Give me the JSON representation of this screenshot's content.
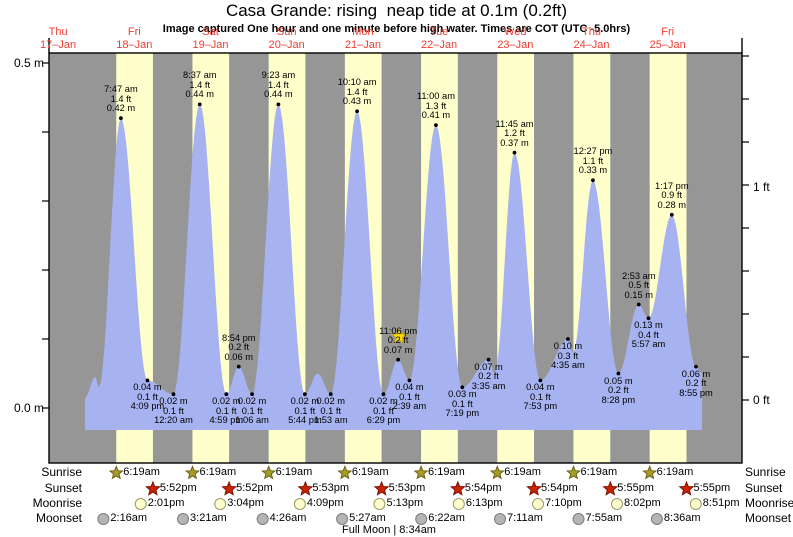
{
  "title": "Casa Grande: rising  neap tide at 0.1m (0.2ft)",
  "subtitle": "Image captured One hour and one minute before high water. Times are COT (UTC -5.0hrs)",
  "axes": {
    "left_top": "0.5 m",
    "left_bottom": "0.0 m",
    "right_top": "1 ft",
    "right_bottom": "0 ft"
  },
  "days": [
    {
      "name": "Thu",
      "date": "17–Jan"
    },
    {
      "name": "Fri",
      "date": "18–Jan"
    },
    {
      "name": "Sat",
      "date": "19–Jan"
    },
    {
      "name": "Sun",
      "date": "20–Jan"
    },
    {
      "name": "Mon",
      "date": "21–Jan"
    },
    {
      "name": "Tue",
      "date": "22–Jan"
    },
    {
      "name": "Wed",
      "date": "23–Jan"
    },
    {
      "name": "Thu",
      "date": "24–Jan"
    },
    {
      "name": "Fri",
      "date": "25–Jan"
    }
  ],
  "chart_data": {
    "type": "area",
    "title": "Casa Grande: rising neap tide at 0.1m (0.2ft)",
    "y_axis_left": {
      "unit": "m",
      "labels_shown": [
        "0.5 m",
        "0.0 m"
      ],
      "range": [
        0.0,
        0.5
      ]
    },
    "y_axis_right": {
      "unit": "ft",
      "labels_shown": [
        "1 ft",
        "0 ft"
      ]
    },
    "x_axis": {
      "days": 9,
      "start": "Thu 17-Jan",
      "end": "Fri 25-Jan"
    },
    "legend": {
      "day_band": "daylight",
      "gray_band": "night",
      "blue_area": "tide height"
    },
    "points": [
      {
        "day": 0,
        "time": "8:30 pm",
        "height_m": 0.015,
        "kind": "shape"
      },
      {
        "day": 0,
        "time": "11:40 pm",
        "height_m": 0.045,
        "kind": "shape"
      },
      {
        "day": 1,
        "time": "12:50 am",
        "height_m": 0.03,
        "kind": "shape"
      },
      {
        "day": 1,
        "time": "7:47 am",
        "height_m": 0.42,
        "height_ft": 1.4,
        "kind": "high",
        "label_lines": [
          "7:47 am",
          "1.4 ft",
          "0.42 m"
        ],
        "label_pos": "above"
      },
      {
        "day": 1,
        "time": "4:09 pm",
        "height_m": 0.04,
        "height_ft": 0.1,
        "kind": "low",
        "label_lines": [
          "0.04 m",
          "0.1 ft",
          "4:09 pm"
        ],
        "label_pos": "below"
      },
      {
        "day": 2,
        "time": "12:20 am",
        "height_m": 0.02,
        "height_ft": 0.1,
        "kind": "low",
        "label_lines": [
          "0.02 m",
          "0.1 ft",
          "12:20 am"
        ],
        "label_pos": "below"
      },
      {
        "day": 2,
        "time": "8:37 am",
        "height_m": 0.44,
        "height_ft": 1.4,
        "kind": "high",
        "label_lines": [
          "8:37 am",
          "1.4 ft",
          "0.44 m"
        ],
        "label_pos": "above"
      },
      {
        "day": 2,
        "time": "4:59 pm",
        "height_m": 0.02,
        "height_ft": 0.1,
        "kind": "low",
        "label_lines": [
          "0.02 m",
          "0.1 ft",
          "4:59 pm"
        ],
        "label_pos": "below"
      },
      {
        "day": 2,
        "time": "8:54 pm",
        "height_m": 0.06,
        "height_ft": 0.2,
        "kind": "high",
        "label_lines": [
          "8:54 pm",
          "0.2 ft",
          "0.06 m"
        ],
        "label_pos": "above"
      },
      {
        "day": 3,
        "time": "1:06 am",
        "height_m": 0.02,
        "height_ft": 0.1,
        "kind": "low",
        "label_lines": [
          "0.02 m",
          "0.1 ft",
          "1:06 am"
        ],
        "label_pos": "below"
      },
      {
        "day": 3,
        "time": "9:23 am",
        "height_m": 0.44,
        "height_ft": 1.4,
        "kind": "high",
        "label_lines": [
          "9:23 am",
          "1.4 ft",
          "0.44 m"
        ],
        "label_pos": "above"
      },
      {
        "day": 3,
        "time": "5:44 pm",
        "height_m": 0.02,
        "height_ft": 0.1,
        "kind": "low",
        "label_lines": [
          "0.02 m",
          "0.1 ft",
          "5:44 pm"
        ],
        "label_pos": "below"
      },
      {
        "day": 3,
        "time": "9:45 pm",
        "height_m": 0.05,
        "kind": "shape"
      },
      {
        "day": 4,
        "time": "1:53 am",
        "height_m": 0.02,
        "height_ft": 0.1,
        "kind": "low",
        "label_lines": [
          "0.02 m",
          "0.1 ft",
          "1:53 am"
        ],
        "label_pos": "below"
      },
      {
        "day": 4,
        "time": "10:10 am",
        "height_m": 0.43,
        "height_ft": 1.4,
        "kind": "high",
        "label_lines": [
          "10:10 am",
          "1.4 ft",
          "0.43 m"
        ],
        "label_pos": "above"
      },
      {
        "day": 4,
        "time": "6:29 pm",
        "height_m": 0.02,
        "height_ft": 0.1,
        "kind": "low",
        "label_lines": [
          "0.02 m",
          "0.1 ft",
          "6:29 pm"
        ],
        "label_pos": "below"
      },
      {
        "day": 4,
        "time": "11:06 pm",
        "height_m": 0.07,
        "height_ft": 0.2,
        "kind": "high",
        "current": true,
        "label_lines": [
          "11:06 pm",
          "0.2 ft",
          "0.07 m"
        ],
        "label_pos": "above"
      },
      {
        "day": 5,
        "time": "2:39 am",
        "height_m": 0.04,
        "height_ft": 0.1,
        "kind": "low",
        "label_lines": [
          "0.04 m",
          "0.1 ft",
          "2:39 am"
        ],
        "label_pos": "below"
      },
      {
        "day": 5,
        "time": "11:00 am",
        "height_m": 0.41,
        "height_ft": 1.3,
        "kind": "high",
        "label_lines": [
          "11:00 am",
          "1.3 ft",
          "0.41 m"
        ],
        "label_pos": "above"
      },
      {
        "day": 5,
        "time": "7:19 pm",
        "height_m": 0.03,
        "height_ft": 0.1,
        "kind": "low",
        "label_lines": [
          "0.03 m",
          "0.1 ft",
          "7:19 pm"
        ],
        "label_pos": "below"
      },
      {
        "day": 6,
        "time": "3:35 am",
        "height_m": 0.07,
        "height_ft": 0.2,
        "kind": "high",
        "label_lines": [
          "0.07 m",
          "0.2 ft",
          "3:35 am"
        ],
        "label_pos": "below"
      },
      {
        "day": 6,
        "time": "5:30 am",
        "height_m": 0.05,
        "kind": "shape"
      },
      {
        "day": 6,
        "time": "11:45 am",
        "height_m": 0.37,
        "height_ft": 1.2,
        "kind": "high",
        "label_lines": [
          "11:45 am",
          "1.2 ft",
          "0.37 m"
        ],
        "label_pos": "above"
      },
      {
        "day": 6,
        "time": "7:53 pm",
        "height_m": 0.04,
        "height_ft": 0.1,
        "kind": "low",
        "label_lines": [
          "0.04 m",
          "0.1 ft",
          "7:53 pm"
        ],
        "label_pos": "below"
      },
      {
        "day": 7,
        "time": "4:35 am",
        "height_m": 0.1,
        "height_ft": 0.3,
        "kind": "high",
        "label_lines": [
          "0.10 m",
          "0.3 ft",
          "4:35 am"
        ],
        "label_pos": "below"
      },
      {
        "day": 7,
        "time": "6:10 am",
        "height_m": 0.08,
        "kind": "shape"
      },
      {
        "day": 7,
        "time": "12:27 pm",
        "height_m": 0.33,
        "height_ft": 1.1,
        "kind": "high",
        "label_lines": [
          "12:27 pm",
          "1.1 ft",
          "0.33 m"
        ],
        "label_pos": "above"
      },
      {
        "day": 7,
        "time": "8:28 pm",
        "height_m": 0.05,
        "height_ft": 0.2,
        "kind": "low",
        "label_lines": [
          "0.05 m",
          "0.2 ft",
          "8:28 pm"
        ],
        "label_pos": "below"
      },
      {
        "day": 8,
        "time": "2:53 am",
        "height_m": 0.15,
        "height_ft": 0.5,
        "kind": "high",
        "label_lines": [
          "2:53 am",
          "0.5 ft",
          "0.15 m"
        ],
        "label_pos": "above"
      },
      {
        "day": 8,
        "time": "5:57 am",
        "height_m": 0.13,
        "height_ft": 0.4,
        "kind": "low",
        "label_lines": [
          "0.13 m",
          "0.4 ft",
          "5:57 am"
        ],
        "label_pos": "below"
      },
      {
        "day": 8,
        "time": "1:17 pm",
        "height_m": 0.28,
        "height_ft": 0.9,
        "kind": "high",
        "label_lines": [
          "1:17 pm",
          "0.9 ft",
          "0.28 m"
        ],
        "label_pos": "above"
      },
      {
        "day": 8,
        "time": "8:55 pm",
        "height_m": 0.06,
        "height_ft": 0.2,
        "kind": "low",
        "label_lines": [
          "0.06 m",
          "0.2 ft",
          "8:55 pm"
        ],
        "label_pos": "below"
      },
      {
        "day": 8,
        "time": "10:50 pm",
        "height_m": 0.05,
        "kind": "shape"
      }
    ]
  },
  "almanac": {
    "rows": [
      {
        "label": "Sunrise",
        "icon": "sunrise-star",
        "times": [
          "6:19am",
          "6:19am",
          "6:19am",
          "6:19am",
          "6:19am",
          "6:19am",
          "6:19am",
          "6:19am"
        ]
      },
      {
        "label": "Sunset",
        "icon": "sunset-star",
        "times": [
          "5:52pm",
          "5:52pm",
          "5:53pm",
          "5:53pm",
          "5:54pm",
          "5:54pm",
          "5:55pm",
          "5:55pm"
        ]
      },
      {
        "label": "Moonrise",
        "icon": "moonrise-circle",
        "times": [
          "2:01pm",
          "3:04pm",
          "4:09pm",
          "5:13pm",
          "6:13pm",
          "7:10pm",
          "8:02pm",
          "8:51pm"
        ]
      },
      {
        "label": "Moonset",
        "icon": "moonset-circle",
        "times": [
          "2:16am",
          "3:21am",
          "4:26am",
          "5:27am",
          "6:22am",
          "7:11am",
          "7:55am",
          "8:36am"
        ]
      }
    ],
    "footnote": "Full Moon | 8:34am"
  },
  "colors": {
    "night_band": "#969696",
    "day_band": "#ffffcc",
    "tide_fill": "#a6b3f0",
    "day_label": "#f03c32",
    "sunrise_star": "#a89b2a",
    "sunrise_star_edge": "#6b6214",
    "sunset_star": "#cc2200",
    "sunset_star_edge": "#7a1200",
    "moonrise_fill": "#ffffcc",
    "moonrise_edge": "#99996b",
    "moonset_fill": "#b5b5b5",
    "moonset_edge": "#7d7d7d",
    "current_marker": "#ffdf00",
    "current_marker_edge": "#c8a500",
    "frame": "#000000"
  }
}
